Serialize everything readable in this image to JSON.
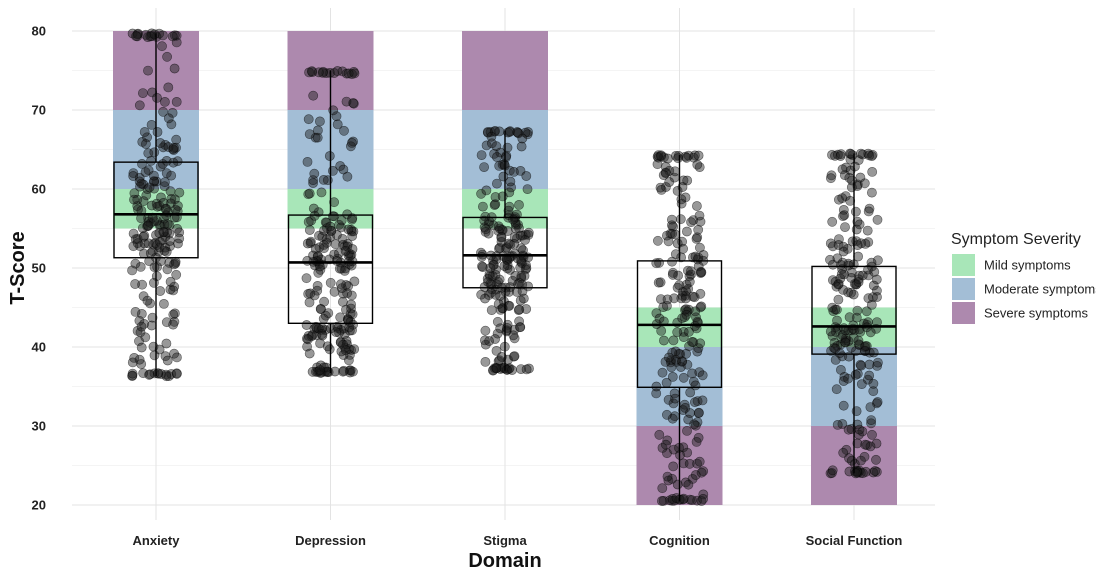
{
  "chart_data": {
    "type": "boxplot",
    "xlabel": "Domain",
    "ylabel": "T-Score",
    "ylim": [
      20,
      80
    ],
    "yticks": [
      20,
      30,
      40,
      50,
      60,
      70,
      80
    ],
    "grid": true,
    "legend": {
      "title": "Symptom Severity",
      "position": "right",
      "entries": [
        {
          "label": "Mild symptoms",
          "color": "#a8e6b8"
        },
        {
          "label": "Moderate symptoms",
          "color": "#a3bed6"
        },
        {
          "label": "Severe symptoms",
          "color": "#ad89ae"
        }
      ]
    },
    "categories": [
      "Anxiety",
      "Depression",
      "Stigma",
      "Cognition",
      "Social Function"
    ],
    "severity_bands": [
      {
        "category": "Anxiety",
        "mild": [
          55,
          60
        ],
        "moderate": [
          60,
          70
        ],
        "severe": [
          70,
          80
        ]
      },
      {
        "category": "Depression",
        "mild": [
          55,
          60
        ],
        "moderate": [
          60,
          70
        ],
        "severe": [
          70,
          80
        ]
      },
      {
        "category": "Stigma",
        "mild": [
          55,
          60
        ],
        "moderate": [
          60,
          70
        ],
        "severe": [
          70,
          80
        ]
      },
      {
        "category": "Cognition",
        "mild": [
          40,
          45
        ],
        "moderate": [
          30,
          40
        ],
        "severe": [
          20,
          30
        ]
      },
      {
        "category": "Social Function",
        "mild": [
          40,
          45
        ],
        "moderate": [
          30,
          40
        ],
        "severe": [
          20,
          30
        ]
      }
    ],
    "boxes": [
      {
        "category": "Anxiety",
        "whisker_low": 36.3,
        "q1": 51.3,
        "median": 56.8,
        "q3": 63.4,
        "whisker_high": 79.7
      },
      {
        "category": "Depression",
        "whisker_low": 36.7,
        "q1": 43.0,
        "median": 50.7,
        "q3": 56.7,
        "whisker_high": 75.0
      },
      {
        "category": "Stigma",
        "whisker_low": 37.0,
        "q1": 47.5,
        "median": 51.6,
        "q3": 56.4,
        "whisker_high": 67.4
      },
      {
        "category": "Cognition",
        "whisker_low": 20.5,
        "q1": 34.9,
        "median": 42.8,
        "q3": 50.9,
        "whisker_high": 64.3
      },
      {
        "category": "Social Function",
        "whisker_low": 24.0,
        "q1": 39.1,
        "median": 42.6,
        "q3": 50.2,
        "whisker_high": 64.5
      }
    ],
    "points_per_category": 230,
    "point_color": "#1a1a1a"
  }
}
